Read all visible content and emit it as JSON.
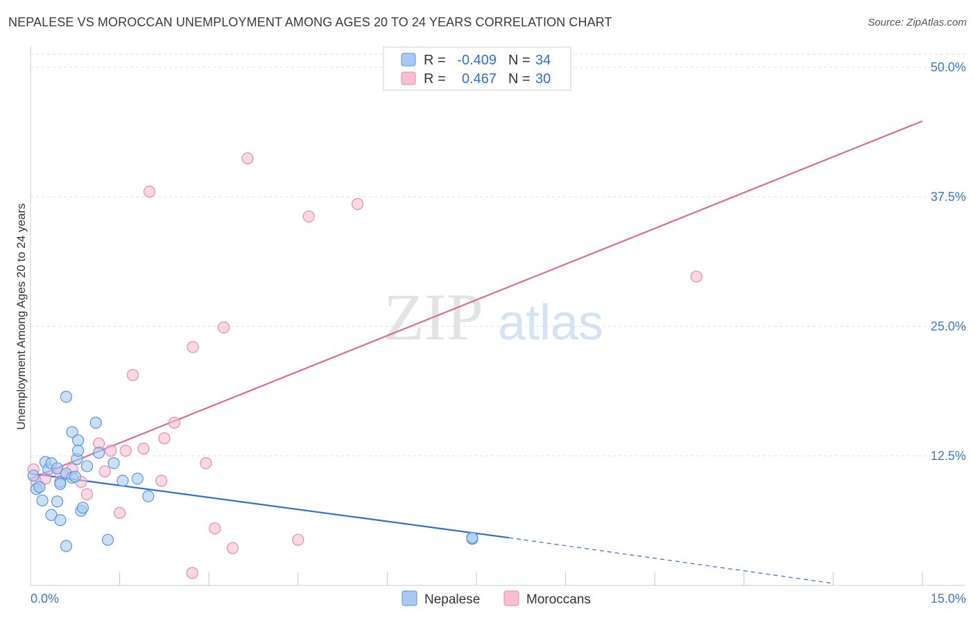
{
  "header": {
    "title": "NEPALESE VS MOROCCAN UNEMPLOYMENT AMONG AGES 20 TO 24 YEARS CORRELATION CHART",
    "source": "Source: ZipAtlas.com"
  },
  "watermark": {
    "zip": "ZIP",
    "atlas": "atlas"
  },
  "colors": {
    "nepalese_fill": "#a9c9f2",
    "nepalese_stroke": "#5b93de",
    "nepalese_line": "#2f6fcc",
    "moroccan_fill": "#f6bfd2",
    "moroccan_stroke": "#e88aab",
    "moroccan_line": "#e06a93",
    "grid": "#dddddd",
    "axis_text": "#3d78c9"
  },
  "stats": [
    {
      "series": "Nepalese",
      "r_label": "R =",
      "r_value": "-0.409",
      "n_label": "N =",
      "n_value": "34"
    },
    {
      "series": "Moroccans",
      "r_label": "R =",
      "r_value": "0.467",
      "n_label": "N =",
      "n_value": "30"
    }
  ],
  "chart_data": {
    "type": "scatter",
    "title": "NEPALESE VS MOROCCAN UNEMPLOYMENT AMONG AGES 20 TO 24 YEARS CORRELATION CHART",
    "xlabel": "",
    "ylabel": "Unemployment Among Ages 20 to 24 years",
    "xlim": [
      0,
      15
    ],
    "ylim": [
      0,
      50
    ],
    "x_tick_labels": [
      {
        "value": 0,
        "label": "0.0%"
      },
      {
        "value": 15,
        "label": "15.0%"
      }
    ],
    "x_minor_ticks": [
      1.5,
      3,
      4.5,
      6,
      7.5,
      9,
      10.5,
      12,
      13.5,
      15
    ],
    "y_ticks": [
      {
        "value": 12.5,
        "label": "12.5%"
      },
      {
        "value": 25,
        "label": "25.0%"
      },
      {
        "value": 37.5,
        "label": "37.5%"
      },
      {
        "value": 50,
        "label": "50.0%"
      }
    ],
    "grid": true,
    "legend_position": "bottom-center",
    "series": [
      {
        "name": "Nepalese",
        "r": -0.409,
        "n": 34,
        "points": [
          [
            0.05,
            10.6
          ],
          [
            0.1,
            9.3
          ],
          [
            0.15,
            9.5
          ],
          [
            0.2,
            8.2
          ],
          [
            0.25,
            11.9
          ],
          [
            0.3,
            11.2
          ],
          [
            0.35,
            11.8
          ],
          [
            0.35,
            6.8
          ],
          [
            0.45,
            8.1
          ],
          [
            0.45,
            11.3
          ],
          [
            0.5,
            10.0
          ],
          [
            0.5,
            9.8
          ],
          [
            0.5,
            6.3
          ],
          [
            0.6,
            10.8
          ],
          [
            0.6,
            18.2
          ],
          [
            0.6,
            3.8
          ],
          [
            0.7,
            10.4
          ],
          [
            0.7,
            14.8
          ],
          [
            0.75,
            10.5
          ],
          [
            0.78,
            12.2
          ],
          [
            0.8,
            14.0
          ],
          [
            0.8,
            13.0
          ],
          [
            0.85,
            7.2
          ],
          [
            0.88,
            7.5
          ],
          [
            0.95,
            11.5
          ],
          [
            1.1,
            15.7
          ],
          [
            1.15,
            12.8
          ],
          [
            1.3,
            4.4
          ],
          [
            1.4,
            11.8
          ],
          [
            1.55,
            10.1
          ],
          [
            1.8,
            10.3
          ],
          [
            1.98,
            8.6
          ],
          [
            7.43,
            4.5
          ],
          [
            7.43,
            4.6
          ]
        ],
        "trend": {
          "x0": 0,
          "y0": 10.8,
          "x1": 8.05,
          "y1": 4.6,
          "dashed_to_x": 13.5,
          "dashed_to_y": 0.2
        }
      },
      {
        "name": "Moroccans",
        "r": 0.467,
        "n": 30,
        "points": [
          [
            0.05,
            11.2
          ],
          [
            0.1,
            10.0
          ],
          [
            0.15,
            9.5
          ],
          [
            0.25,
            10.3
          ],
          [
            0.5,
            10.8
          ],
          [
            0.7,
            11.2
          ],
          [
            0.85,
            10.0
          ],
          [
            0.95,
            8.8
          ],
          [
            1.15,
            13.7
          ],
          [
            1.25,
            11.0
          ],
          [
            1.35,
            13.0
          ],
          [
            1.5,
            7.0
          ],
          [
            1.6,
            13.0
          ],
          [
            1.72,
            20.3
          ],
          [
            1.9,
            13.2
          ],
          [
            2.0,
            38.0
          ],
          [
            2.2,
            10.1
          ],
          [
            2.25,
            14.2
          ],
          [
            2.42,
            15.7
          ],
          [
            2.72,
            1.2
          ],
          [
            2.73,
            23.0
          ],
          [
            2.95,
            11.8
          ],
          [
            3.1,
            5.5
          ],
          [
            3.25,
            24.9
          ],
          [
            3.4,
            3.6
          ],
          [
            3.65,
            41.2
          ],
          [
            4.5,
            4.4
          ],
          [
            4.68,
            35.6
          ],
          [
            5.5,
            36.8
          ],
          [
            11.2,
            29.8
          ]
        ],
        "trend": {
          "x0": 0,
          "y0": 10.3,
          "x1": 15,
          "y1": 44.8
        }
      }
    ]
  }
}
